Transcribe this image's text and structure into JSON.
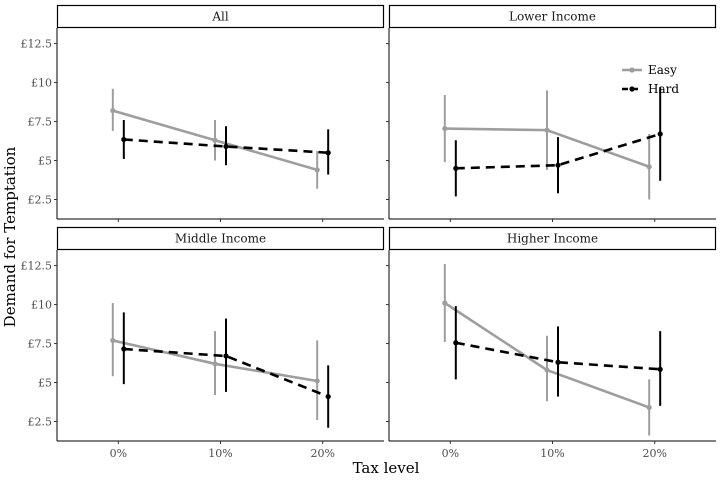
{
  "chart_data": {
    "type": "line",
    "xlabel": "Tax level",
    "ylabel": "Demand for Temptation",
    "categories": [
      "0%",
      "10%",
      "20%"
    ],
    "ylim": [
      1.25,
      13.5
    ],
    "yticks": [
      2.5,
      5,
      7.5,
      10,
      12.5
    ],
    "ytick_labels": [
      "£2.5",
      "£5",
      "£7.5",
      "£10",
      "£12.5"
    ],
    "legend": {
      "placement": "top-right",
      "entries": [
        "Easy",
        "Hard"
      ]
    },
    "colors": {
      "Easy": "#9e9e9e",
      "Hard": "#000000"
    },
    "grid": false,
    "panels": [
      {
        "title": "All",
        "series": [
          {
            "name": "Easy",
            "values": [
              8.2,
              6.3,
              4.4
            ],
            "lower": [
              6.9,
              5.0,
              3.2
            ],
            "upper": [
              9.6,
              7.6,
              5.6
            ]
          },
          {
            "name": "Hard",
            "values": [
              6.35,
              5.9,
              5.5
            ],
            "lower": [
              5.1,
              4.7,
              4.1
            ],
            "upper": [
              7.6,
              7.2,
              7.0
            ]
          }
        ]
      },
      {
        "title": "Lower Income",
        "series": [
          {
            "name": "Easy",
            "values": [
              7.05,
              6.95,
              4.6
            ],
            "lower": [
              4.9,
              4.4,
              2.5
            ],
            "upper": [
              9.2,
              9.5,
              6.7
            ]
          },
          {
            "name": "Hard",
            "values": [
              4.5,
              4.7,
              6.7
            ],
            "lower": [
              2.7,
              2.9,
              3.7
            ],
            "upper": [
              6.3,
              6.5,
              9.7
            ]
          }
        ]
      },
      {
        "title": "Middle Income",
        "series": [
          {
            "name": "Easy",
            "values": [
              7.7,
              6.2,
              5.1
            ],
            "lower": [
              5.4,
              4.2,
              2.6
            ],
            "upper": [
              10.1,
              8.3,
              7.7
            ]
          },
          {
            "name": "Hard",
            "values": [
              7.15,
              6.7,
              4.1
            ],
            "lower": [
              4.9,
              4.4,
              2.1
            ],
            "upper": [
              9.5,
              9.1,
              6.1
            ]
          }
        ]
      },
      {
        "title": "Higher Income",
        "series": [
          {
            "name": "Easy",
            "values": [
              10.1,
              5.8,
              3.4
            ],
            "lower": [
              7.6,
              3.8,
              1.6
            ],
            "upper": [
              12.6,
              8.0,
              5.2
            ]
          },
          {
            "name": "Hard",
            "values": [
              7.55,
              6.3,
              5.85
            ],
            "lower": [
              5.2,
              4.1,
              3.5
            ],
            "upper": [
              9.9,
              8.6,
              8.3
            ]
          }
        ]
      }
    ]
  }
}
